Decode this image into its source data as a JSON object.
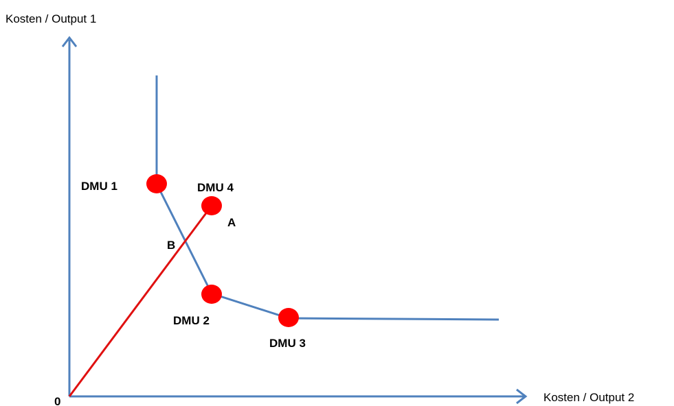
{
  "axes": {
    "y_label": "Kosten / Output 1",
    "x_label": "Kosten / Output 2",
    "origin_label": "0",
    "color": "#4F81BD"
  },
  "frontier": {
    "color": "#4F81BD"
  },
  "ray": {
    "color": "#E01010"
  },
  "points": [
    {
      "id": "dmu1",
      "label": "DMU 1",
      "color": "#FF0000"
    },
    {
      "id": "dmu4",
      "label": "DMU 4",
      "color": "#FF0000"
    },
    {
      "id": "dmu2",
      "label": "DMU 2",
      "color": "#FF0000"
    },
    {
      "id": "dmu3",
      "label": "DMU 3",
      "color": "#FF0000"
    }
  ],
  "markers": {
    "A": "A",
    "B": "B"
  }
}
